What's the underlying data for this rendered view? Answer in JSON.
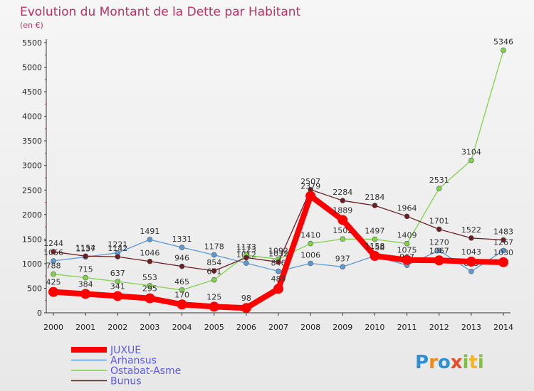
{
  "chart_data": {
    "type": "line",
    "title": "Evolution du Montant de la Dette par Habitant",
    "subtitle": "(en €)",
    "x": [
      "2000",
      "2001",
      "2002",
      "2003",
      "2004",
      "2005",
      "2006",
      "2007",
      "2008",
      "2009",
      "2010",
      "2011",
      "2012",
      "2013",
      "2014"
    ],
    "ylim": [
      0,
      5500
    ],
    "yticks": [
      0,
      500,
      1000,
      1500,
      2000,
      2500,
      3000,
      3500,
      4000,
      4500,
      5000,
      5500
    ],
    "grid": false,
    "legend_position": "bottom-left",
    "series": [
      {
        "name": "JUXUE",
        "color": "#ff0000",
        "values": [
          425,
          384,
          341,
          295,
          170,
          125,
          98,
          489,
          2379,
          1889,
          1158,
          1075,
          1067,
          1043,
          1030
        ],
        "labels": [
          "425",
          "384",
          "341",
          "295",
          "170",
          "125",
          "98",
          "489",
          "2379",
          "1889",
          "1158",
          "1075",
          "1067",
          "1043",
          "1030"
        ]
      },
      {
        "name": "Arhansus",
        "color": "#5b9bd5",
        "values": [
          1056,
          1137,
          1221,
          1491,
          1331,
          1178,
          1012,
          846,
          1006,
          937,
          1158,
          967,
          1270,
          843,
          1267
        ],
        "labels": [
          "1056",
          "1137",
          "1221",
          "1491",
          "1331",
          "1178",
          "1012",
          "846",
          "1006",
          "937",
          "1158",
          "967",
          "1270",
          "843",
          "1267"
        ]
      },
      {
        "name": "Ostabat-Asme",
        "color": "#7fd34a",
        "values": [
          788,
          715,
          637,
          553,
          465,
          671,
          1173,
          1092,
          1410,
          1502,
          1497,
          1409,
          2531,
          3104,
          5346
        ],
        "labels": [
          "788",
          "715",
          "637",
          "553",
          "465",
          "671",
          "1173",
          "1092",
          "1410",
          "1502",
          "1497",
          "1409",
          "2531",
          "3104",
          "5346"
        ]
      },
      {
        "name": "Bunus",
        "color": "#6b1f22",
        "values": [
          1244,
          1154,
          1142,
          1046,
          946,
          854,
          1123,
          1032,
          2507,
          2284,
          2184,
          1964,
          1701,
          1522,
          1483
        ],
        "labels": [
          "1244",
          "1154",
          "1142",
          "1046",
          "946",
          "854",
          "1123",
          "1032",
          "2507",
          "2284",
          "2184",
          "1964",
          "1701",
          "1522",
          "1483"
        ]
      }
    ]
  },
  "logo": {
    "text": "Proxiti"
  }
}
